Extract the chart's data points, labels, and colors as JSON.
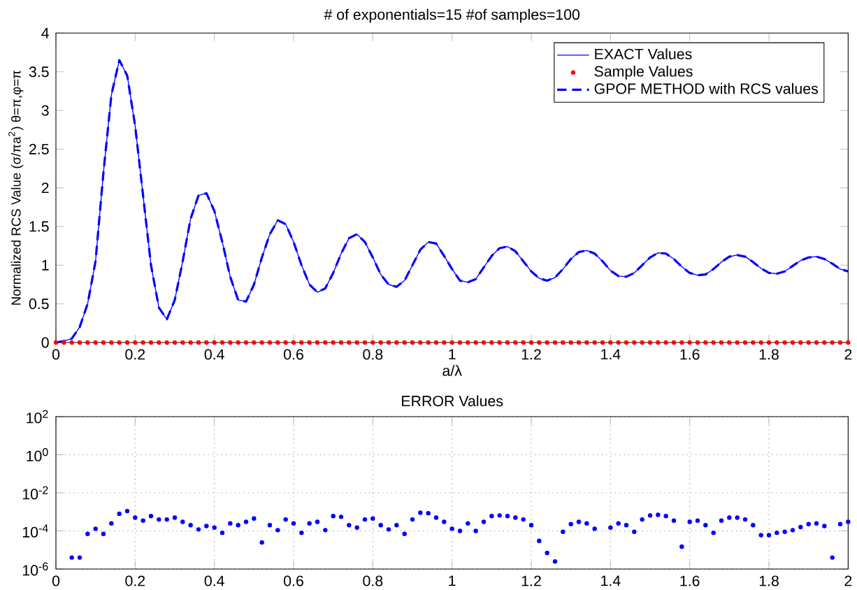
{
  "chart_data": [
    {
      "type": "line",
      "title": "# of exponentials=15 #of samples=100",
      "xlabel": "a/λ",
      "ylabel": "Normalized RCS Value (σ/πa$^{2}$) θ=π,φ=π",
      "xlim": [
        0,
        2
      ],
      "ylim": [
        0,
        4
      ],
      "xticks": [
        0,
        0.2,
        0.4,
        0.6,
        0.8,
        1,
        1.2,
        1.4,
        1.6,
        1.8,
        2
      ],
      "yticks": [
        0,
        0.5,
        1,
        1.5,
        2,
        2.5,
        3,
        3.5,
        4
      ],
      "legend": "top right",
      "grid": false,
      "x": [
        0,
        0.02,
        0.04,
        0.06,
        0.08,
        0.1,
        0.12,
        0.14,
        0.16,
        0.18,
        0.2,
        0.22,
        0.24,
        0.26,
        0.28,
        0.3,
        0.32,
        0.34,
        0.36,
        0.38,
        0.4,
        0.42,
        0.44,
        0.46,
        0.48,
        0.5,
        0.52,
        0.54,
        0.56,
        0.58,
        0.6,
        0.62,
        0.64,
        0.66,
        0.68,
        0.7,
        0.72,
        0.74,
        0.76,
        0.78,
        0.8,
        0.82,
        0.84,
        0.86,
        0.88,
        0.9,
        0.92,
        0.94,
        0.96,
        0.98,
        1,
        1.02,
        1.04,
        1.06,
        1.08,
        1.1,
        1.12,
        1.14,
        1.16,
        1.18,
        1.2,
        1.22,
        1.24,
        1.26,
        1.28,
        1.3,
        1.32,
        1.34,
        1.36,
        1.38,
        1.4,
        1.42,
        1.44,
        1.46,
        1.48,
        1.5,
        1.52,
        1.54,
        1.56,
        1.58,
        1.6,
        1.62,
        1.64,
        1.66,
        1.68,
        1.7,
        1.72,
        1.74,
        1.76,
        1.78,
        1.8,
        1.82,
        1.84,
        1.86,
        1.88,
        1.9,
        1.92,
        1.94,
        1.96,
        1.98,
        2
      ],
      "series": [
        {
          "name": "EXACT Values",
          "color": "#0000ff",
          "type": "line",
          "line_style": "solid",
          "marker": "none",
          "values": [
            0,
            0.02,
            0.05,
            0.2,
            0.5,
            1.05,
            2.2,
            3.2,
            3.65,
            3.45,
            2.8,
            1.9,
            1.0,
            0.45,
            0.3,
            0.55,
            1.05,
            1.6,
            1.9,
            1.93,
            1.7,
            1.3,
            0.85,
            0.55,
            0.53,
            0.75,
            1.1,
            1.4,
            1.58,
            1.53,
            1.3,
            1.0,
            0.75,
            0.65,
            0.7,
            0.9,
            1.15,
            1.35,
            1.4,
            1.3,
            1.1,
            0.88,
            0.75,
            0.72,
            0.8,
            1.0,
            1.2,
            1.3,
            1.28,
            1.12,
            0.95,
            0.8,
            0.78,
            0.82,
            0.97,
            1.12,
            1.22,
            1.24,
            1.18,
            1.05,
            0.92,
            0.83,
            0.8,
            0.84,
            0.95,
            1.08,
            1.17,
            1.19,
            1.15,
            1.05,
            0.93,
            0.86,
            0.85,
            0.9,
            1.0,
            1.1,
            1.16,
            1.15,
            1.08,
            0.98,
            0.9,
            0.87,
            0.88,
            0.95,
            1.04,
            1.11,
            1.13,
            1.11,
            1.04,
            0.96,
            0.9,
            0.89,
            0.92,
            0.99,
            1.06,
            1.1,
            1.11,
            1.08,
            1.02,
            0.95,
            0.92
          ]
        },
        {
          "name": "Sample Values",
          "color": "#ff0000",
          "type": "scatter",
          "marker": "circle",
          "values": [
            0,
            0,
            0,
            0,
            0,
            0,
            0,
            0,
            0,
            0,
            0,
            0,
            0,
            0,
            0,
            0,
            0,
            0,
            0,
            0,
            0,
            0,
            0,
            0,
            0,
            0,
            0,
            0,
            0,
            0,
            0,
            0,
            0,
            0,
            0,
            0,
            0,
            0,
            0,
            0,
            0,
            0,
            0,
            0,
            0,
            0,
            0,
            0,
            0,
            0,
            0,
            0,
            0,
            0,
            0,
            0,
            0,
            0,
            0,
            0,
            0,
            0,
            0,
            0,
            0,
            0,
            0,
            0,
            0,
            0,
            0,
            0,
            0,
            0,
            0,
            0,
            0,
            0,
            0,
            0,
            0,
            0,
            0,
            0,
            0,
            0,
            0,
            0,
            0,
            0,
            0,
            0,
            0,
            0,
            0,
            0,
            0,
            0,
            0,
            0,
            0
          ]
        },
        {
          "name": "GPOF METHOD with RCS values",
          "color": "#0000ff",
          "type": "line",
          "line_style": "dashed",
          "marker": "none",
          "values": [
            0,
            0.02,
            0.05,
            0.2,
            0.5,
            1.05,
            2.2,
            3.2,
            3.65,
            3.45,
            2.8,
            1.9,
            1.0,
            0.45,
            0.3,
            0.55,
            1.05,
            1.6,
            1.9,
            1.93,
            1.7,
            1.3,
            0.85,
            0.55,
            0.53,
            0.75,
            1.1,
            1.4,
            1.58,
            1.53,
            1.3,
            1.0,
            0.75,
            0.65,
            0.7,
            0.9,
            1.15,
            1.35,
            1.4,
            1.3,
            1.1,
            0.88,
            0.75,
            0.72,
            0.8,
            1.0,
            1.2,
            1.3,
            1.28,
            1.12,
            0.95,
            0.8,
            0.78,
            0.82,
            0.97,
            1.12,
            1.22,
            1.24,
            1.18,
            1.05,
            0.92,
            0.83,
            0.8,
            0.84,
            0.95,
            1.08,
            1.17,
            1.19,
            1.15,
            1.05,
            0.93,
            0.86,
            0.85,
            0.9,
            1.0,
            1.1,
            1.16,
            1.15,
            1.08,
            0.98,
            0.9,
            0.87,
            0.88,
            0.95,
            1.04,
            1.11,
            1.13,
            1.11,
            1.04,
            0.96,
            0.9,
            0.89,
            0.92,
            0.99,
            1.06,
            1.1,
            1.11,
            1.08,
            1.02,
            0.95,
            0.92
          ]
        }
      ]
    },
    {
      "type": "scatter",
      "title": "ERROR Values",
      "log": "y",
      "grid": true,
      "marker": "circle",
      "xlim": [
        0,
        2
      ],
      "ylim": [
        1e-06,
        100
      ],
      "xticks": [
        0,
        0.2,
        0.4,
        0.6,
        0.8,
        1,
        1.2,
        1.4,
        1.6,
        1.8,
        2
      ],
      "yticks": [
        {
          "value": 1e-06,
          "label": "10$^{-6}$"
        },
        {
          "value": 0.0001,
          "label": "10$^{-4}$"
        },
        {
          "value": 0.01,
          "label": "10$^{-2}$"
        },
        {
          "value": 1,
          "label": "10$^{0}$"
        },
        {
          "value": 100,
          "label": "10$^{2}$"
        }
      ],
      "x": [
        0.04,
        0.06,
        0.08,
        0.1,
        0.12,
        0.14,
        0.16,
        0.18,
        0.2,
        0.22,
        0.24,
        0.26,
        0.28,
        0.3,
        0.32,
        0.34,
        0.36,
        0.38,
        0.4,
        0.42,
        0.44,
        0.46,
        0.48,
        0.5,
        0.52,
        0.54,
        0.56,
        0.58,
        0.6,
        0.62,
        0.64,
        0.66,
        0.68,
        0.7,
        0.72,
        0.74,
        0.76,
        0.78,
        0.8,
        0.82,
        0.84,
        0.86,
        0.88,
        0.9,
        0.92,
        0.94,
        0.96,
        0.98,
        1,
        1.02,
        1.04,
        1.06,
        1.08,
        1.1,
        1.12,
        1.14,
        1.16,
        1.18,
        1.2,
        1.22,
        1.24,
        1.26,
        1.28,
        1.3,
        1.32,
        1.34,
        1.36,
        1.38,
        1.4,
        1.42,
        1.44,
        1.46,
        1.48,
        1.5,
        1.52,
        1.54,
        1.56,
        1.58,
        1.6,
        1.62,
        1.64,
        1.66,
        1.68,
        1.7,
        1.72,
        1.74,
        1.76,
        1.78,
        1.8,
        1.82,
        1.84,
        1.86,
        1.88,
        1.9,
        1.92,
        1.94,
        1.96,
        1.98,
        2
      ],
      "series": [
        {
          "color": "#0000ff",
          "values": [
            4e-06,
            4e-06,
            7e-05,
            0.00013,
            7e-05,
            0.00025,
            0.0008,
            0.0011,
            0.0005,
            0.00035,
            0.0006,
            0.0004,
            0.0004,
            0.0005,
            0.0003,
            0.0002,
            0.00012,
            0.00018,
            0.00015,
            8e-05,
            0.00025,
            0.0002,
            0.0003,
            0.00045,
            2.5e-05,
            0.0002,
            0.00011,
            0.0004,
            0.00025,
            8e-05,
            0.00025,
            0.0003,
            0.00011,
            0.0006,
            0.00055,
            0.0002,
            0.00015,
            0.0004,
            0.00045,
            0.0002,
            0.00012,
            0.0002,
            7e-05,
            0.0004,
            0.0009,
            0.00085,
            0.0005,
            0.0003,
            0.00013,
            0.0001,
            0.00025,
            0.0001,
            0.0003,
            0.0006,
            0.00065,
            0.0006,
            0.0005,
            0.0004,
            0.0002,
            3e-05,
            7e-06,
            2.5e-06,
            9e-05,
            0.00023,
            0.0003,
            0.00025,
            0.00013,
            null,
            0.00015,
            0.00025,
            0.0002,
            9e-05,
            0.0004,
            0.00065,
            0.0007,
            0.0006,
            0.00035,
            1.5e-05,
            0.0003,
            0.00035,
            0.0002,
            8e-05,
            0.00035,
            0.0005,
            0.0005,
            0.0004,
            0.0002,
            6e-05,
            6e-05,
            8e-05,
            9e-05,
            0.00011,
            0.00016,
            0.00023,
            0.00025,
            0.00018,
            4e-06,
            0.00023,
            0.0003
          ]
        }
      ]
    }
  ]
}
